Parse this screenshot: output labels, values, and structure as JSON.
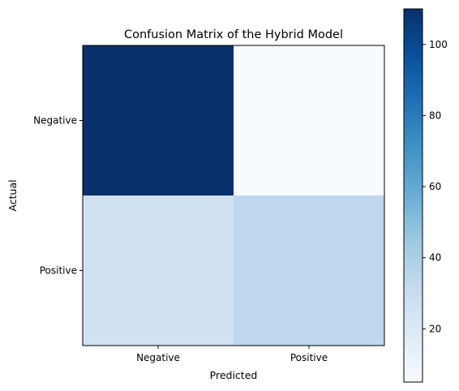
{
  "chart_data": {
    "type": "heatmap",
    "title": "Confusion Matrix of the Hybrid Model",
    "xlabel": "Predicted",
    "ylabel": "Actual",
    "x_categories": [
      "Negative",
      "Positive"
    ],
    "y_categories": [
      "Negative",
      "Positive"
    ],
    "values": [
      [
        110,
        5
      ],
      [
        26,
        34
      ]
    ],
    "colormap": "Blues",
    "colorbar": {
      "range": [
        5,
        110
      ],
      "ticks": [
        20,
        40,
        60,
        80,
        100
      ],
      "tick_labels": [
        "20",
        "40",
        "60",
        "80",
        "100"
      ]
    },
    "grid": false
  }
}
